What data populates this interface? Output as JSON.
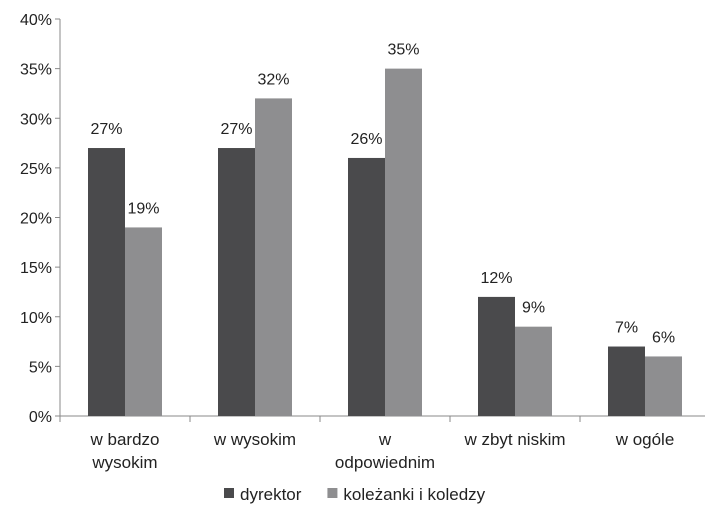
{
  "chart_data": {
    "type": "bar",
    "title": "",
    "xlabel": "",
    "ylabel": "",
    "categories": [
      [
        "w bardzo",
        "wysokim"
      ],
      [
        "w wysokim"
      ],
      [
        "w",
        "odpowiednim"
      ],
      [
        "w zbyt niskim"
      ],
      [
        "w ogóle"
      ]
    ],
    "series": [
      {
        "name": "dyrektor",
        "color": "#4a4a4c",
        "values": [
          27,
          27,
          26,
          12,
          7
        ],
        "labels": [
          "27%",
          "27%",
          "26%",
          "12%",
          "7%"
        ]
      },
      {
        "name": "koleżanki i koledzy",
        "color": "#8e8e90",
        "values": [
          19,
          32,
          35,
          9,
          6
        ],
        "labels": [
          "19%",
          "32%",
          "35%",
          "9%",
          "6%"
        ]
      }
    ],
    "ylim": [
      0,
      40
    ],
    "yticks": [
      0,
      5,
      10,
      15,
      20,
      25,
      30,
      35,
      40
    ],
    "ytick_labels": [
      "0%",
      "5%",
      "10%",
      "15%",
      "20%",
      "25%",
      "30%",
      "35%",
      "40%"
    ],
    "grid": false,
    "legend_position": "bottom"
  }
}
